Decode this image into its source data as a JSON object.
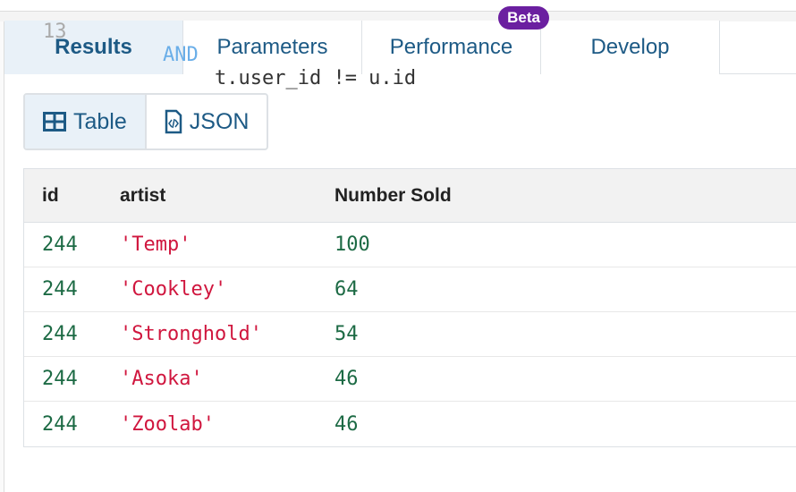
{
  "editor": {
    "line_number": "13",
    "keyword": "AND",
    "code": "t.user_id != u.id"
  },
  "tabs": [
    {
      "label": "Results",
      "active": true
    },
    {
      "label": "Parameters"
    },
    {
      "label": "Performance",
      "badge": "Beta"
    },
    {
      "label": "Develop"
    }
  ],
  "view_toggle": {
    "table": "Table",
    "json": "JSON",
    "selected": "Table"
  },
  "table": {
    "columns": [
      "id",
      "artist",
      "Number Sold"
    ],
    "rows": [
      [
        "244",
        "'Temp'",
        "100"
      ],
      [
        "244",
        "'Cookley'",
        "64"
      ],
      [
        "244",
        "'Stronghold'",
        "54"
      ],
      [
        "244",
        "'Asoka'",
        "46"
      ],
      [
        "244",
        "'Zoolab'",
        "46"
      ]
    ]
  },
  "colors": {
    "accent": "#1d5a85",
    "badge": "#6b1fa0",
    "number": "#1c6a44",
    "string": "#d0163e"
  }
}
